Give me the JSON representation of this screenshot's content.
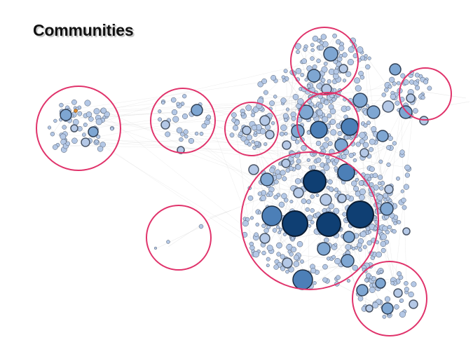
{
  "page": {
    "title": "Communities"
  },
  "colors": {
    "background": "#ffffff",
    "community_ring": "#e0336b",
    "edge": "#c9c9c9",
    "node_fill_light": "#b4c8e6",
    "node_fill_mid": "#7ea6d2",
    "node_fill_dark": "#4c7fb7",
    "node_fill_hub": "#0f3f73",
    "node_stroke": "#4a5566"
  },
  "legend": {
    "visible": false
  },
  "diagram": {
    "type": "network-graph",
    "communities_highlighted": 9
  }
}
